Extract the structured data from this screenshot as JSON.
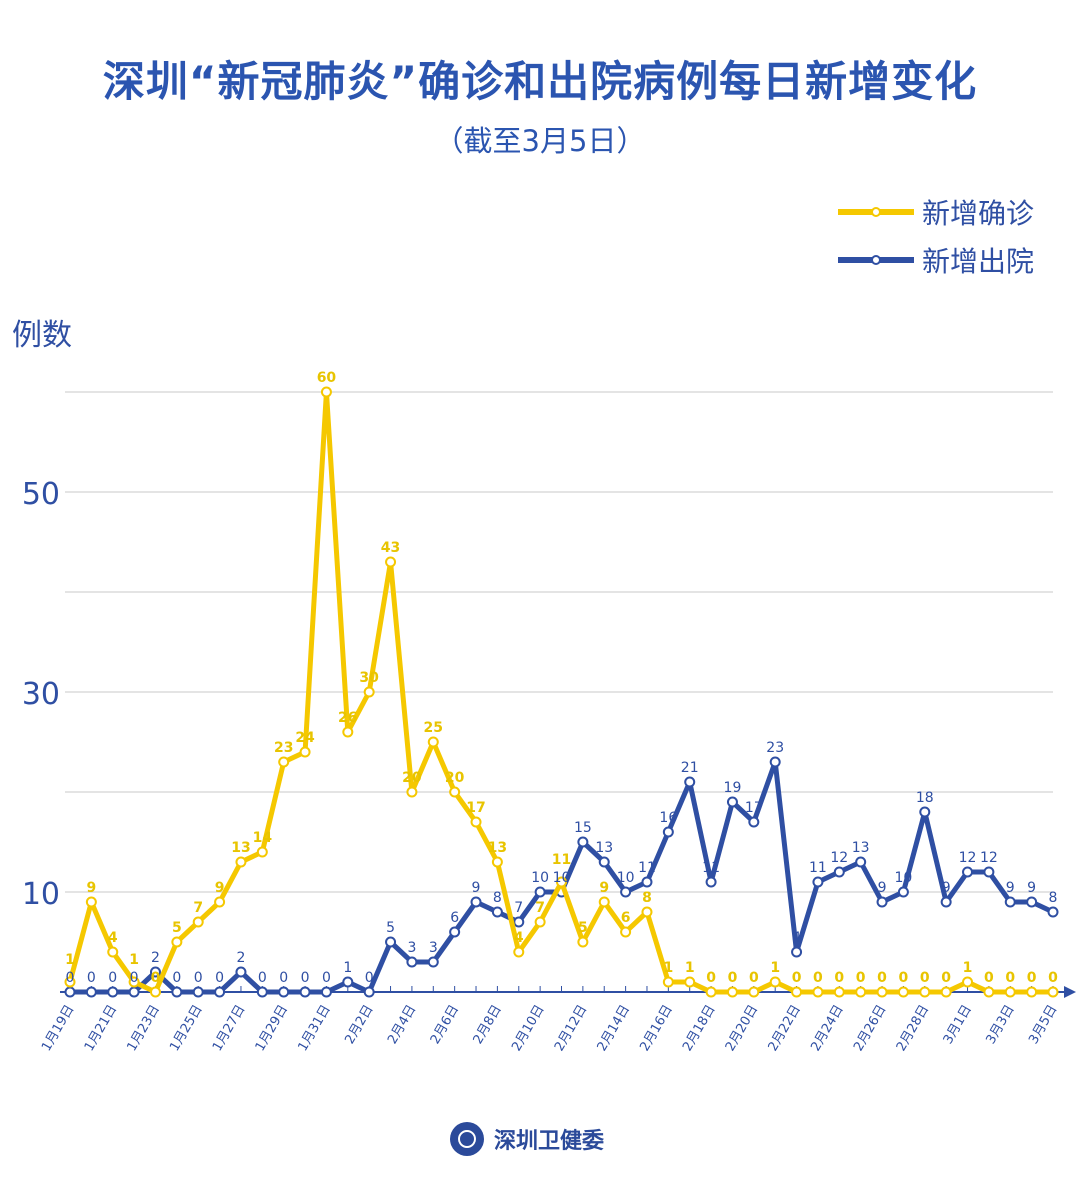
{
  "chart_data": {
    "type": "line",
    "title": "深圳“新冠肺炎”确诊和出院病例每日新增变化",
    "subtitle": "（截至3月5日）",
    "ylabel": "例数",
    "ylim": [
      0,
      60
    ],
    "yticks": [
      10,
      30,
      50
    ],
    "grid": true,
    "legend_position": "top-right",
    "x": [
      "1月19日",
      "1月20日",
      "1月21日",
      "1月22日",
      "1月23日",
      "1月24日",
      "1月25日",
      "1月26日",
      "1月27日",
      "1月28日",
      "1月29日",
      "1月30日",
      "1月31日",
      "2月1日",
      "2月2日",
      "2月3日",
      "2月4日",
      "2月5日",
      "2月6日",
      "2月7日",
      "2月8日",
      "2月9日",
      "2月10日",
      "2月11日",
      "2月12日",
      "2月13日",
      "2月14日",
      "2月15日",
      "2月16日",
      "2月17日",
      "2月18日",
      "2月19日",
      "2月20日",
      "2月21日",
      "2月22日",
      "2月23日",
      "2月24日",
      "2月25日",
      "2月26日",
      "2月27日",
      "2月28日",
      "2月29日",
      "3月1日",
      "3月2日",
      "3月3日",
      "3月4日",
      "3月5日"
    ],
    "xtick_labels": [
      "1月19日",
      "1月21日",
      "1月23日",
      "1月25日",
      "1月27日",
      "1月29日",
      "1月31日",
      "2月2日",
      "2月4日",
      "2月6日",
      "2月8日",
      "2月10日",
      "2月12日",
      "2月14日",
      "2月16日",
      "2月18日",
      "2月20日",
      "2月22日",
      "2月24日",
      "2月26日",
      "2月28日",
      "3月1日",
      "3月3日",
      "3月5日"
    ],
    "series": [
      {
        "name": "新增确诊",
        "color": "#f5c800",
        "label_color": "#e8c400",
        "values": [
          1,
          9,
          4,
          1,
          0,
          5,
          7,
          9,
          13,
          14,
          23,
          24,
          60,
          26,
          30,
          43,
          20,
          25,
          20,
          17,
          13,
          4,
          7,
          11,
          5,
          9,
          6,
          8,
          1,
          1,
          0,
          0,
          0,
          1,
          0,
          0,
          0,
          0,
          0,
          0,
          0,
          0,
          1,
          0,
          0,
          0,
          0
        ]
      },
      {
        "name": "新增出院",
        "color": "#2f4fa3",
        "label_color": "#2f4fa3",
        "values": [
          0,
          0,
          0,
          0,
          2,
          0,
          0,
          0,
          2,
          0,
          0,
          0,
          0,
          1,
          0,
          5,
          3,
          3,
          6,
          9,
          8,
          7,
          10,
          10,
          15,
          13,
          10,
          11,
          16,
          21,
          11,
          19,
          17,
          23,
          4,
          11,
          12,
          13,
          9,
          10,
          18,
          9,
          12,
          12,
          9,
          9,
          8
        ]
      }
    ]
  },
  "footer": {
    "org": "深圳卫健委"
  }
}
